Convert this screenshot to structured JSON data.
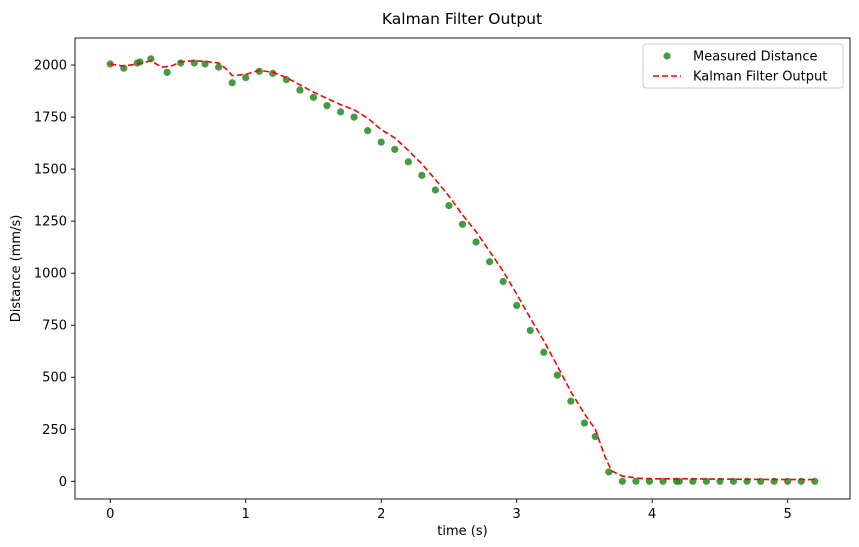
{
  "chart_data": {
    "type": "scatter",
    "title": "Kalman Filter Output",
    "xlabel": "time (s)",
    "ylabel": "Distance (mm/s)",
    "xlim": [
      -0.26,
      5.46
    ],
    "ylim": [
      -85,
      2130
    ],
    "xticks": [
      0,
      1,
      2,
      3,
      4,
      5
    ],
    "yticks": [
      0,
      250,
      500,
      750,
      1000,
      1250,
      1500,
      1750,
      2000
    ],
    "grid": false,
    "legend_position": "top-right",
    "series": [
      {
        "name": "Measured Distance",
        "kind": "scatter",
        "color": "#228B22",
        "x": [
          0.0,
          0.1,
          0.2,
          0.22,
          0.3,
          0.42,
          0.52,
          0.62,
          0.7,
          0.8,
          0.9,
          1.0,
          1.1,
          1.2,
          1.3,
          1.4,
          1.5,
          1.6,
          1.7,
          1.8,
          1.9,
          2.0,
          2.1,
          2.2,
          2.3,
          2.4,
          2.5,
          2.6,
          2.7,
          2.8,
          2.9,
          3.0,
          3.1,
          3.2,
          3.3,
          3.4,
          3.5,
          3.58,
          3.68,
          3.78,
          3.88,
          3.98,
          4.08,
          4.18,
          4.2,
          4.3,
          4.4,
          4.5,
          4.6,
          4.7,
          4.8,
          4.9,
          5.0,
          5.1,
          5.2
        ],
        "y": [
          2005,
          1985,
          2010,
          2015,
          2030,
          1965,
          2010,
          2010,
          2005,
          1990,
          1915,
          1940,
          1970,
          1960,
          1930,
          1880,
          1845,
          1805,
          1775,
          1750,
          1685,
          1630,
          1595,
          1535,
          1470,
          1400,
          1325,
          1235,
          1150,
          1055,
          960,
          845,
          725,
          620,
          510,
          385,
          280,
          215,
          45,
          0,
          0,
          0,
          0,
          0,
          0,
          0,
          0,
          0,
          0,
          0,
          0,
          0,
          0,
          0,
          0
        ]
      },
      {
        "name": "Kalman Filter Output",
        "kind": "line",
        "dashed": true,
        "color": "#ff0000",
        "x": [
          0.0,
          0.1,
          0.2,
          0.3,
          0.38,
          0.45,
          0.52,
          0.6,
          0.7,
          0.8,
          0.85,
          0.9,
          1.0,
          1.05,
          1.1,
          1.2,
          1.3,
          1.4,
          1.5,
          1.6,
          1.7,
          1.8,
          1.9,
          2.0,
          2.1,
          2.2,
          2.3,
          2.4,
          2.5,
          2.6,
          2.7,
          2.8,
          2.9,
          3.0,
          3.1,
          3.2,
          3.3,
          3.4,
          3.5,
          3.58,
          3.65,
          3.7,
          3.78,
          3.9,
          4.0,
          4.2,
          4.4,
          4.6,
          4.8,
          5.0,
          5.2
        ],
        "y": [
          2005,
          1995,
          2005,
          2020,
          1990,
          1995,
          2015,
          2020,
          2018,
          2010,
          1985,
          1950,
          1955,
          1965,
          1975,
          1965,
          1940,
          1905,
          1870,
          1840,
          1810,
          1785,
          1745,
          1690,
          1650,
          1590,
          1525,
          1450,
          1370,
          1280,
          1200,
          1105,
          1010,
          900,
          785,
          675,
          555,
          430,
          325,
          250,
          120,
          50,
          25,
          15,
          12,
          12,
          11,
          10,
          9,
          8,
          8
        ]
      }
    ]
  }
}
